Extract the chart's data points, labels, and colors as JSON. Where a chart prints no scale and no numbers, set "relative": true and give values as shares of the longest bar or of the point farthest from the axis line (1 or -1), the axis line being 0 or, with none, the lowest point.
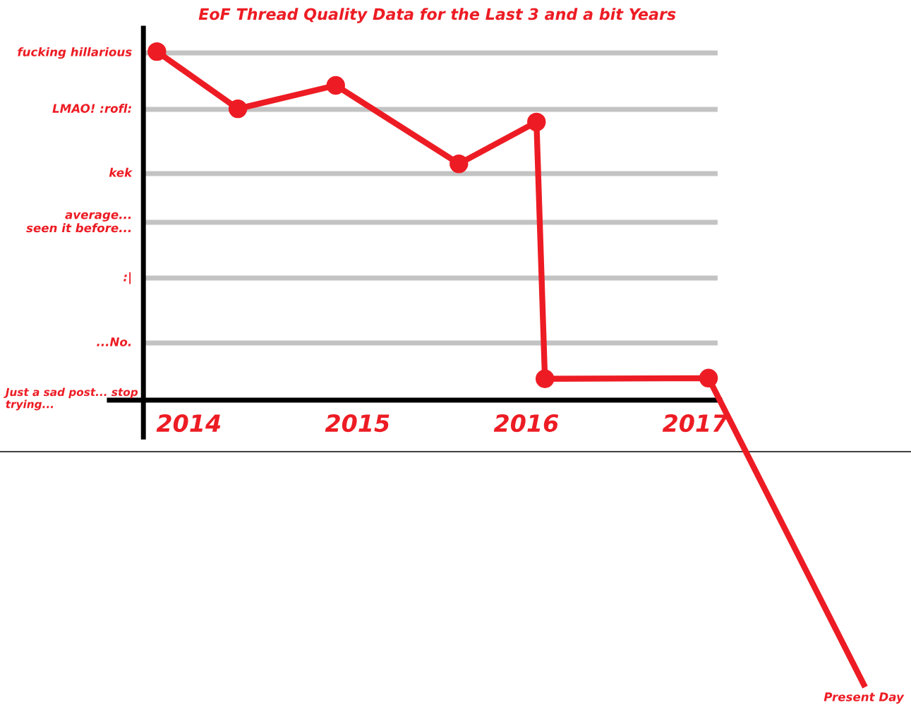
{
  "chart_data": {
    "type": "line",
    "title": "EoF Thread Quality Data for the Last 3 and a bit Years",
    "relative": true,
    "x": [
      2013.81,
      2014.29,
      2014.87,
      2015.6,
      2016.06,
      2016.11,
      2017.08,
      2018.0
    ],
    "series": [
      {
        "color": "#ed1c24",
        "values": [
          1.0,
          0.836,
          0.903,
          0.678,
          0.798,
          0.061,
          0.063,
          -0.816
        ]
      }
    ],
    "marker": "circle",
    "line_style": "solid",
    "legend": false,
    "xlim": [
      2012.88,
      2018.28
    ],
    "xticks": [
      2014,
      2015,
      2016,
      2017
    ],
    "ref_lines": [
      {
        "axis": "y",
        "value": 0.996,
        "label": "fucking hillarious",
        "color": "#c3c3c3"
      },
      {
        "axis": "y",
        "value": 0.834,
        "label": "LMAO! :rofl:",
        "color": "#c3c3c3"
      },
      {
        "axis": "y",
        "value": 0.65,
        "label": "kek",
        "color": "#c3c3c3"
      },
      {
        "axis": "y",
        "value": 0.51,
        "label": "average...\nseen it before...",
        "color": "#c3c3c3"
      },
      {
        "axis": "y",
        "value": 0.35,
        "label": ":|",
        "color": "#c3c3c3"
      },
      {
        "axis": "y",
        "value": 0.164,
        "label": "...No.",
        "color": "#c3c3c3"
      },
      {
        "axis": "y",
        "value": -0.148,
        "color": "#000000"
      },
      {
        "axis": "x",
        "value": 2013.73,
        "color": "#000000"
      }
    ],
    "annotations": [
      "Just a sad post... stop\ntrying...",
      {
        "text": "Present Day",
        "x": 2018.0,
        "y": -0.816
      }
    ]
  }
}
